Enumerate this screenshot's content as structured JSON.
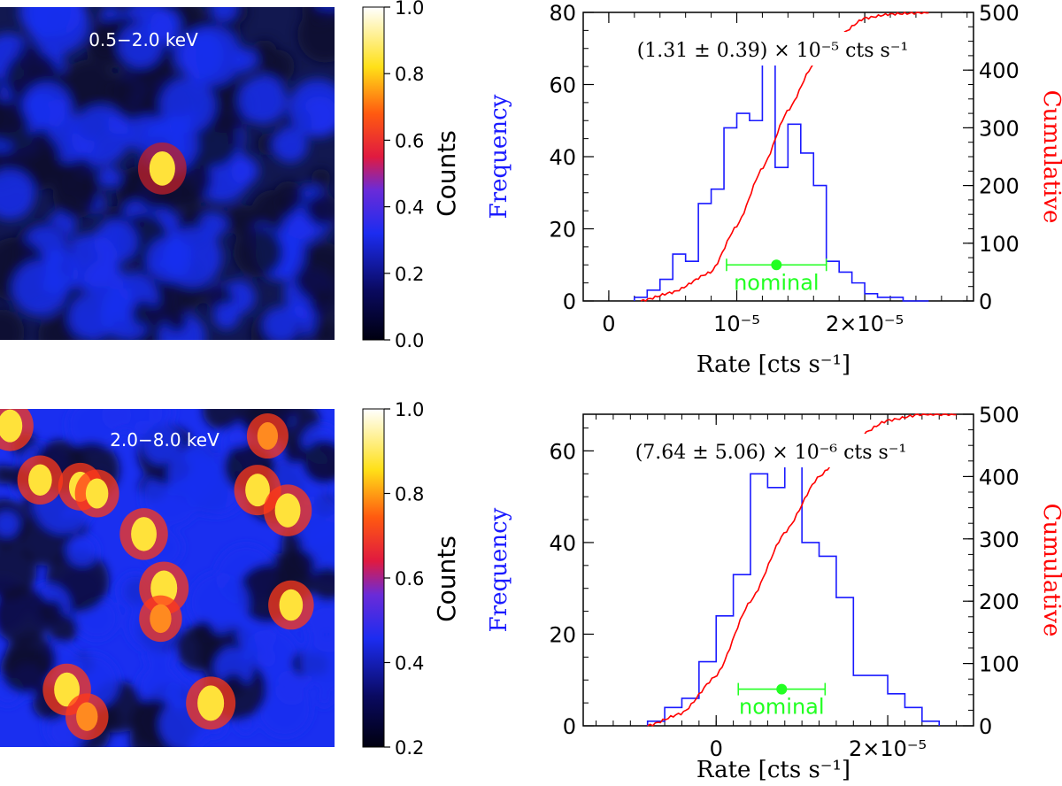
{
  "chart_data": [
    {
      "type": "heatmap",
      "panel": "top-left",
      "band_label": "0.5−2.0 keV",
      "colorbar": {
        "label": "Counts",
        "range": [
          0.0,
          1.0
        ],
        "ticks": [
          "0.0",
          "0.2",
          "0.4",
          "0.6",
          "0.8",
          "1.0"
        ],
        "tick_values": [
          0.0,
          0.2,
          0.4,
          0.6,
          0.8,
          1.0
        ]
      },
      "colors": {
        "background": "#0a0d30",
        "field": "#1a2ff0",
        "source": "#ffe23a"
      },
      "sources": [
        {
          "x": 0.485,
          "y": 0.485,
          "value": 0.95
        }
      ]
    },
    {
      "type": "histogram",
      "panel": "top-right",
      "annotation": "(1.31 ± 0.39) × 10⁻⁵ cts s⁻¹",
      "xlabel": "Rate [cts s⁻¹]",
      "ylabel_left": "Frequency",
      "ylabel_right": "Cumulative",
      "xlim": [
        -2e-06,
        2.85e-05
      ],
      "ylim_left": [
        0,
        80
      ],
      "ylim_right": [
        0,
        500
      ],
      "xticks": [
        {
          "value": 0,
          "label": "0"
        },
        {
          "value": 1e-05,
          "label": "10⁻⁵"
        },
        {
          "value": 2e-05,
          "label": "2×10⁻⁵"
        }
      ],
      "yticks_left": [
        "0",
        "20",
        "40",
        "60",
        "80"
      ],
      "yticks_right": [
        "0",
        "100",
        "200",
        "300",
        "400",
        "500"
      ],
      "bin_edges_start": 2e-06,
      "bin_width": 1e-06,
      "frequency": [
        1,
        3,
        6,
        13,
        11,
        27,
        31,
        48,
        52,
        50,
        69,
        37,
        49,
        41,
        32,
        11,
        8,
        5,
        2,
        1,
        1,
        0,
        0
      ],
      "cumulative": {
        "x": [
          2.5e-06,
          5e-06,
          8e-06,
          1e-05,
          1.2e-05,
          1.4e-05,
          1.6e-05,
          1.8e-05,
          2e-05,
          2.2e-05,
          2.5e-05
        ],
        "y": [
          0,
          15,
          50,
          130,
          230,
          330,
          410,
          460,
          490,
          497,
          500
        ]
      },
      "nominal": {
        "label": "nominal",
        "value": 1.31e-05,
        "err_low": 3.9e-06,
        "err_high": 3.9e-06,
        "y": 10
      },
      "colors": {
        "histogram": "#1a1aff",
        "cumulative": "#ff0000",
        "nominal": "#22ff22",
        "left_label": "#1a1aff",
        "right_label": "#ff0000"
      }
    },
    {
      "type": "heatmap",
      "panel": "bottom-left",
      "band_label": "2.0−8.0 keV",
      "colorbar": {
        "label": "Counts",
        "range": [
          0.2,
          1.0
        ],
        "ticks": [
          "0.2",
          "0.4",
          "0.6",
          "0.8",
          "1.0"
        ],
        "tick_values": [
          0.2,
          0.4,
          0.6,
          0.8,
          1.0
        ]
      },
      "colors": {
        "background": "#0a0d30",
        "field": "#1a2ff0",
        "source": "#ffe23a",
        "mid": "#ff3a1a"
      },
      "sources": [
        {
          "x": 0.03,
          "y": 0.05,
          "value": 0.9
        },
        {
          "x": 0.12,
          "y": 0.21,
          "value": 0.85
        },
        {
          "x": 0.24,
          "y": 0.23,
          "value": 0.8
        },
        {
          "x": 0.29,
          "y": 0.25,
          "value": 0.8
        },
        {
          "x": 0.43,
          "y": 0.37,
          "value": 0.95
        },
        {
          "x": 0.77,
          "y": 0.24,
          "value": 0.9
        },
        {
          "x": 0.86,
          "y": 0.3,
          "value": 0.95
        },
        {
          "x": 0.49,
          "y": 0.53,
          "value": 1.0
        },
        {
          "x": 0.48,
          "y": 0.62,
          "value": 0.75
        },
        {
          "x": 0.87,
          "y": 0.58,
          "value": 0.85
        },
        {
          "x": 0.2,
          "y": 0.83,
          "value": 0.95
        },
        {
          "x": 0.63,
          "y": 0.87,
          "value": 1.0
        },
        {
          "x": 0.26,
          "y": 0.91,
          "value": 0.75
        },
        {
          "x": 0.8,
          "y": 0.08,
          "value": 0.7
        }
      ]
    },
    {
      "type": "histogram",
      "panel": "bottom-right",
      "annotation": "(7.64 ± 5.06) × 10⁻⁶ cts s⁻¹",
      "xlabel": "Rate [cts s⁻¹]",
      "ylabel_left": "Frequency",
      "ylabel_right": "Cumulative",
      "xlim": [
        -1.55e-05,
        3e-05
      ],
      "ylim_left": [
        0,
        68
      ],
      "ylim_right": [
        0,
        500
      ],
      "xticks": [
        {
          "value": 0,
          "label": "0"
        },
        {
          "value": 2e-05,
          "label": "2×10⁻⁵"
        }
      ],
      "yticks_left": [
        "0",
        "20",
        "40",
        "60"
      ],
      "yticks_right": [
        "0",
        "100",
        "200",
        "300",
        "400",
        "500"
      ],
      "bin_edges_start": -8e-06,
      "bin_width": 2e-06,
      "frequency": [
        1,
        4,
        6,
        14,
        24,
        33,
        55,
        52,
        58,
        40,
        37,
        28,
        11,
        11,
        7,
        4,
        1
      ],
      "cumulative": {
        "x": [
          -8e-06,
          -4e-06,
          0.0,
          4e-06,
          8e-06,
          1.2e-05,
          1.6e-05,
          2e-05,
          2.4e-05,
          2.8e-05
        ],
        "y": [
          0,
          20,
          80,
          200,
          310,
          400,
          460,
          490,
          500,
          500
        ]
      },
      "nominal": {
        "label": "nominal",
        "value": 7.64e-06,
        "err_low": 5.06e-06,
        "err_high": 5.06e-06,
        "y": 8
      },
      "colors": {
        "histogram": "#1a1aff",
        "cumulative": "#ff0000",
        "nominal": "#22ff22",
        "left_label": "#1a1aff",
        "right_label": "#ff0000"
      }
    }
  ]
}
